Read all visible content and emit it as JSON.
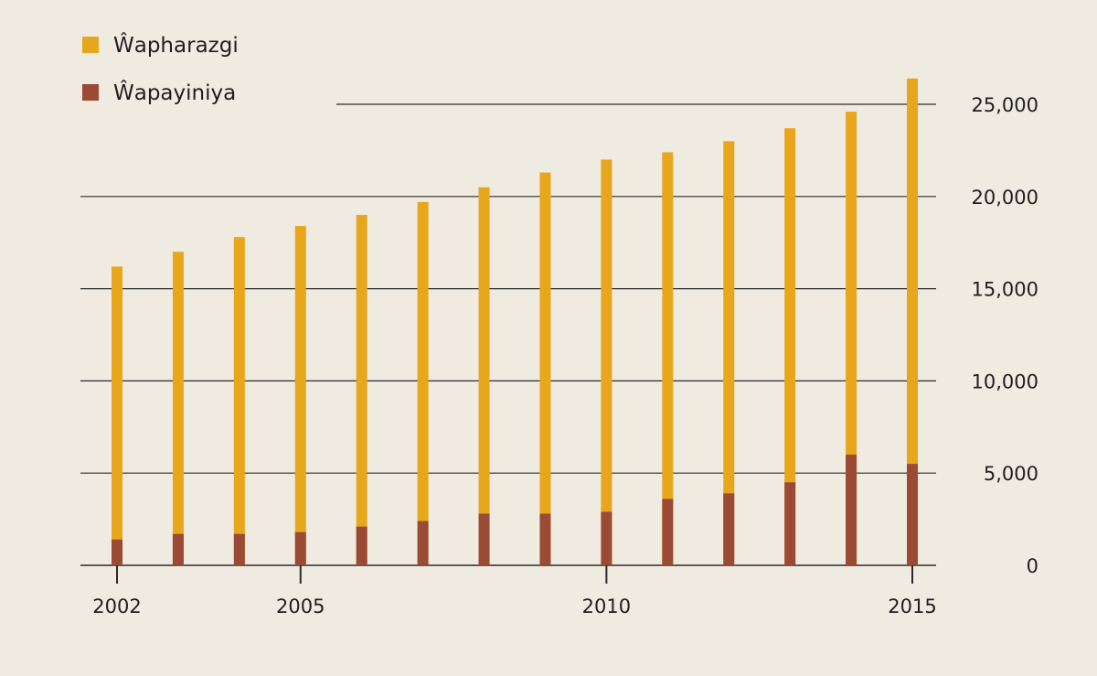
{
  "colors": {
    "background": "#f0ebe1",
    "total": "#e8a61c",
    "inner": "#9b4a35",
    "gridline": "#2a2a2a"
  },
  "legend": {
    "items": [
      {
        "label": "Ŵapharazgi",
        "color": "#e8a61c"
      },
      {
        "label": "Ŵapayiniya",
        "color": "#9b4a35"
      }
    ]
  },
  "chart_data": {
    "type": "bar",
    "stacked": "overlay",
    "x": [
      2002,
      2003,
      2004,
      2005,
      2006,
      2007,
      2008,
      2009,
      2010,
      2011,
      2012,
      2013,
      2014,
      2015
    ],
    "x_tick_labels": [
      {
        "year": 2002,
        "label": "2002"
      },
      {
        "year": 2005,
        "label": "2005"
      },
      {
        "year": 2010,
        "label": "2010"
      },
      {
        "year": 2015,
        "label": "2015"
      }
    ],
    "series": [
      {
        "name": "Ŵapharazgi",
        "values": [
          16200,
          17000,
          17800,
          18400,
          19000,
          19700,
          20500,
          21300,
          22000,
          22400,
          23000,
          23700,
          24600,
          26400
        ]
      },
      {
        "name": "Ŵapayiniya",
        "values": [
          1400,
          1700,
          1700,
          1800,
          2100,
          2400,
          2800,
          2800,
          2900,
          3600,
          3900,
          4500,
          6000,
          5500
        ]
      }
    ],
    "y_tick_labels": [
      {
        "value": 0,
        "label": "0"
      },
      {
        "value": 5000,
        "label": "5,000"
      },
      {
        "value": 10000,
        "label": "10,000"
      },
      {
        "value": 15000,
        "label": "15,000"
      },
      {
        "value": 20000,
        "label": "20,000"
      },
      {
        "value": 25000,
        "label": "25,000"
      }
    ],
    "ylim": [
      0,
      27000
    ],
    "y_axis_side": "right",
    "grid": true,
    "legend_position": "top-left",
    "title": "",
    "xlabel": "",
    "ylabel": ""
  }
}
